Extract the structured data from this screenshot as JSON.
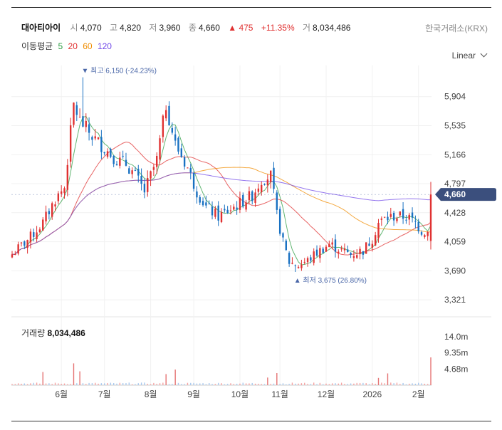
{
  "header": {
    "name": "대아티아이",
    "open_label": "시",
    "open": "4,070",
    "high_label": "고",
    "high": "4,820",
    "low_label": "저",
    "low": "3,960",
    "close_label": "종",
    "close": "4,660",
    "change": "▲ 475",
    "change_pct": "+11.35%",
    "volume_label": "거",
    "volume": "8,034,486",
    "exchange": "한국거래소(KRX)"
  },
  "moving_average": {
    "title": "이동평균",
    "periods": [
      "5",
      "20",
      "60",
      "120"
    ],
    "colors": [
      "#2f9e44",
      "#e03131",
      "#f08c00",
      "#7048e8"
    ]
  },
  "scale_selector": "Linear",
  "volume_panel": {
    "label": "거래량",
    "value": "8,034,486",
    "ticks": [
      "14.0m",
      "9.35m",
      "4.68m"
    ]
  },
  "chart_data": {
    "type": "candlestick",
    "y_ticks": [
      "5,904",
      "5,535",
      "5,166",
      "4,797",
      "4,428",
      "4,059",
      "3,690",
      "3,321"
    ],
    "y_tick_values": [
      5904,
      5535,
      5166,
      4797,
      4428,
      4059,
      3690,
      3321
    ],
    "x_ticks": [
      "6월",
      "7월",
      "8월",
      "9월",
      "10월",
      "11월",
      "12월",
      "2026",
      "2월"
    ],
    "x_tick_index": [
      16,
      30,
      45,
      59,
      74,
      87,
      102,
      117,
      132
    ],
    "ylim": [
      3150,
      6300
    ],
    "current_price": "4,660",
    "high_annotation": "▼ 최고 6,150 (-24.23%)",
    "low_annotation": "▲ 최저 3,675 (26.80%)",
    "up_color": "#e03131",
    "down_color": "#1971c2",
    "price_keypoints": [
      [
        0,
        3900
      ],
      [
        6,
        4120
      ],
      [
        10,
        4300
      ],
      [
        14,
        4600
      ],
      [
        17,
        4750
      ],
      [
        20,
        5800
      ],
      [
        22,
        5600
      ],
      [
        26,
        5400
      ],
      [
        30,
        5250
      ],
      [
        34,
        5100
      ],
      [
        37,
        5050
      ],
      [
        40,
        4900
      ],
      [
        43,
        4700
      ],
      [
        47,
        5100
      ],
      [
        50,
        5800
      ],
      [
        53,
        5300
      ],
      [
        57,
        5000
      ],
      [
        60,
        4700
      ],
      [
        63,
        4500
      ],
      [
        67,
        4380
      ],
      [
        70,
        4450
      ],
      [
        74,
        4550
      ],
      [
        78,
        4650
      ],
      [
        81,
        4850
      ],
      [
        84,
        4900
      ],
      [
        86,
        4400
      ],
      [
        88,
        4050
      ],
      [
        90,
        3800
      ],
      [
        93,
        3760
      ],
      [
        96,
        3820
      ],
      [
        99,
        3920
      ],
      [
        103,
        4030
      ],
      [
        107,
        3950
      ],
      [
        110,
        3900
      ],
      [
        114,
        3950
      ],
      [
        117,
        4100
      ],
      [
        119,
        4300
      ],
      [
        121,
        4350
      ],
      [
        124,
        4380
      ],
      [
        128,
        4380
      ],
      [
        131,
        4300
      ],
      [
        133,
        4200
      ],
      [
        135,
        4185
      ],
      [
        136,
        4660
      ]
    ],
    "high_point": {
      "index": 23,
      "value": 6150
    },
    "low_point": {
      "index": 92,
      "value": 3675
    },
    "volume_spikes": [
      {
        "index": 10,
        "value": 3.8
      },
      {
        "index": 20,
        "value": 6.3
      },
      {
        "index": 22,
        "value": 4.0
      },
      {
        "index": 50,
        "value": 3.2
      },
      {
        "index": 53,
        "value": 4.5
      },
      {
        "index": 83,
        "value": 2.2
      },
      {
        "index": 86,
        "value": 3.5
      },
      {
        "index": 119,
        "value": 2.1
      },
      {
        "index": 122,
        "value": 3.4
      },
      {
        "index": 136,
        "value": 8.03
      }
    ]
  }
}
